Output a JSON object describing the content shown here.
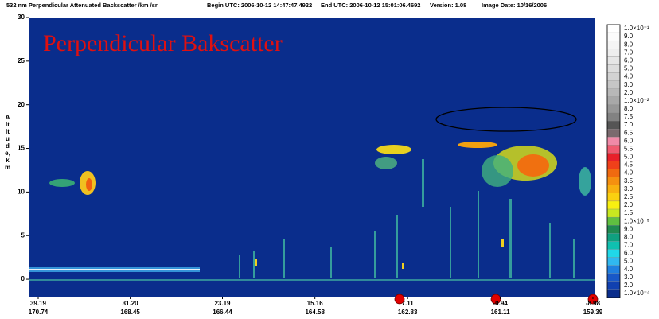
{
  "chart_data": {
    "type": "curtain",
    "title": "532 nm Perpendicular Attenuated Backscatter /km /sr",
    "begin": "Begin UTC: 2006-10-12  14:47:47.4922",
    "end": "End UTC: 2006-10-12  15:01:06.4692",
    "version": "Version: 1.08",
    "image_date": "Image Date: 10/16/2006",
    "annotation": "Perpendicular Bakscatter",
    "ylabel": "Altitude, km",
    "ylim": [
      -2,
      30
    ],
    "yticks": [
      0,
      5,
      10,
      15,
      20,
      25,
      30
    ],
    "xlim": [
      40.02,
      -9.19
    ],
    "xticks": [
      {
        "value": 39.19,
        "label": "39.19",
        "lon": "170.74"
      },
      {
        "value": 31.2,
        "label": "31.20",
        "lon": "168.45"
      },
      {
        "value": 23.19,
        "label": "23.19",
        "lon": "166.44"
      },
      {
        "value": 15.16,
        "label": "15.16",
        "lon": "164.58"
      },
      {
        "value": 7.11,
        "label": "7.11",
        "lon": "162.83"
      },
      {
        "value": -0.94,
        "label": "-0.94",
        "lon": "161.11"
      },
      {
        "value": -8.98,
        "label": "-8.98",
        "lon": "159.39"
      }
    ],
    "background": "#0a2d8c",
    "colorbar": [
      {
        "value": 0.1,
        "label": "1.0×10⁻¹",
        "color": "#ffffff"
      },
      {
        "value": 0.09,
        "label": "9.0",
        "color": "#fbfbfb"
      },
      {
        "value": 0.08,
        "label": "8.0",
        "color": "#f5f5f5"
      },
      {
        "value": 0.07,
        "label": "7.0",
        "color": "#eeeeee"
      },
      {
        "value": 0.06,
        "label": "6.0",
        "color": "#e6e6e6"
      },
      {
        "value": 0.05,
        "label": "5.0",
        "color": "#dddddd"
      },
      {
        "value": 0.04,
        "label": "4.0",
        "color": "#d2d2d2"
      },
      {
        "value": 0.03,
        "label": "3.0",
        "color": "#c6c6c6"
      },
      {
        "value": 0.02,
        "label": "2.0",
        "color": "#b8b8b8"
      },
      {
        "value": 0.01,
        "label": "1.0×10⁻²",
        "color": "#a8a8a8"
      },
      {
        "value": 0.008,
        "label": "8.0",
        "color": "#979797"
      },
      {
        "value": 0.0075,
        "label": "7.5",
        "color": "#828282"
      },
      {
        "value": 0.007,
        "label": "7.0",
        "color": "#555555"
      },
      {
        "value": 0.0065,
        "label": "6.5",
        "color": "#7a6a6e"
      },
      {
        "value": 0.006,
        "label": "6.0",
        "color": "#f08aa8"
      },
      {
        "value": 0.0055,
        "label": "5.5",
        "color": "#f05a70"
      },
      {
        "value": 0.005,
        "label": "5.0",
        "color": "#e8202a"
      },
      {
        "value": 0.0045,
        "label": "4.5",
        "color": "#f0401a"
      },
      {
        "value": 0.004,
        "label": "4.0",
        "color": "#f06a10"
      },
      {
        "value": 0.0035,
        "label": "3.5",
        "color": "#f59010"
      },
      {
        "value": 0.003,
        "label": "3.0",
        "color": "#f8b010"
      },
      {
        "value": 0.0025,
        "label": "2.5",
        "color": "#fad010"
      },
      {
        "value": 0.002,
        "label": "2.0",
        "color": "#f8f010"
      },
      {
        "value": 0.0015,
        "label": "1.5",
        "color": "#c8e820"
      },
      {
        "value": 0.001,
        "label": "1.0×10⁻³",
        "color": "#60c040"
      },
      {
        "value": 0.0009,
        "label": "9.0",
        "color": "#208a50"
      },
      {
        "value": 0.0008,
        "label": "8.0",
        "color": "#10a080"
      },
      {
        "value": 0.0007,
        "label": "7.0",
        "color": "#10c0b0"
      },
      {
        "value": 0.0006,
        "label": "6.0",
        "color": "#20d8e8"
      },
      {
        "value": 0.0005,
        "label": "5.0",
        "color": "#30b8f0"
      },
      {
        "value": 0.0004,
        "label": "4.0",
        "color": "#2080e0"
      },
      {
        "value": 0.0003,
        "label": "3.0",
        "color": "#1858c8"
      },
      {
        "value": 0.0002,
        "label": "2.0",
        "color": "#1040b0"
      },
      {
        "value": 0.0001,
        "label": "1.0×10⁻⁴",
        "color": "#0a2d8c"
      }
    ]
  }
}
